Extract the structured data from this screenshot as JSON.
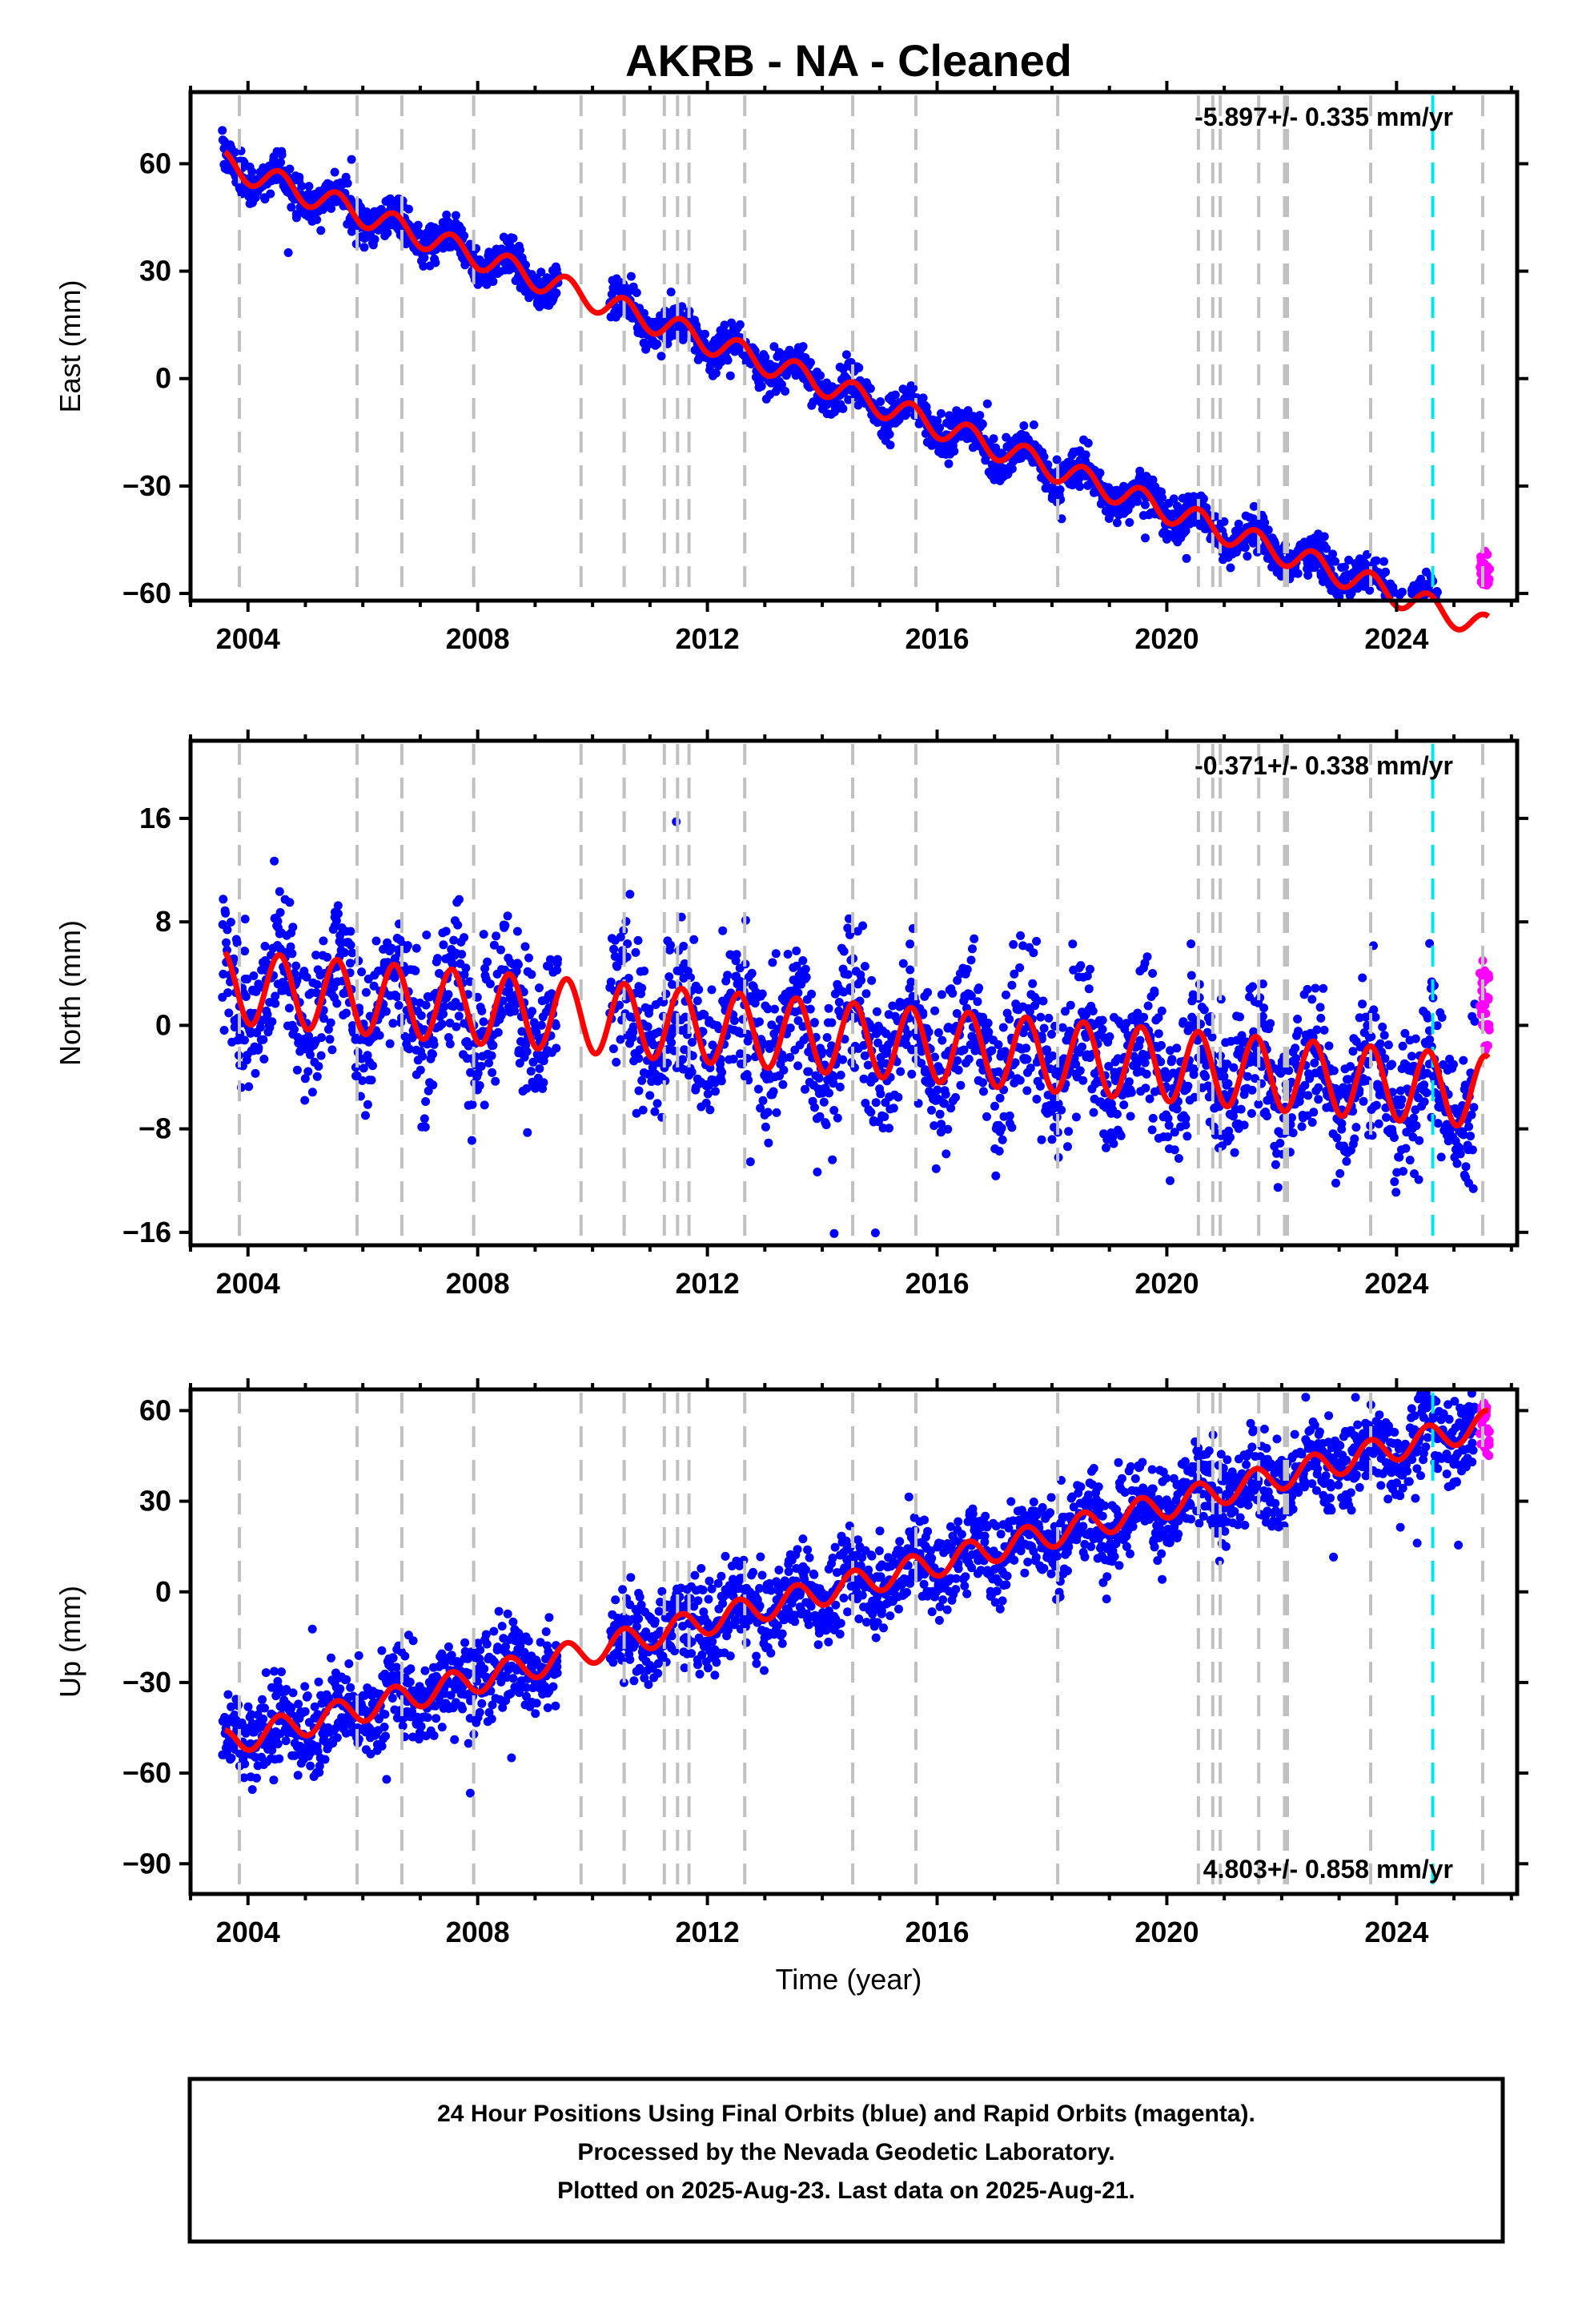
{
  "title": "AKRB  - NA - Cleaned",
  "x_axis_label": "Time (year)",
  "footer": {
    "line1": "24 Hour Positions Using Final Orbits (blue) and Rapid Orbits (magenta).",
    "line2": "Processed by the Nevada Geodetic Laboratory.",
    "line3": "Plotted on 2025-Aug-23. Last data on 2025-Aug-21."
  },
  "colors": {
    "final_orbits": "#0000ff",
    "rapid_orbits": "#ff00ff",
    "model": "#ff0000",
    "equipment_events": "#c0c0c0",
    "event_highlight": "#00e5ee"
  },
  "chart_data": [
    {
      "type": "scatter",
      "panel": "east",
      "ylabel": "East (mm)",
      "rate_label": "-5.897+/- 0.335 mm/yr",
      "xlim": [
        2003.0,
        2026.1
      ],
      "ylim": [
        -62,
        80
      ],
      "x_ticks": [
        2004,
        2008,
        2012,
        2016,
        2020,
        2024
      ],
      "y_ticks": [
        60,
        30,
        0,
        -30,
        -60
      ],
      "rate": -5.897,
      "ref_year": 2003.6,
      "offset": 60,
      "amplitude": 3.5,
      "scatter": 2.8,
      "rapid_range": [
        -59,
        -48
      ],
      "grid": false,
      "legend": "none"
    },
    {
      "type": "scatter",
      "panel": "north",
      "ylabel": "North (mm)",
      "rate_label": "-0.371+/- 0.338 mm/yr",
      "xlim": [
        2003.0,
        2026.1
      ],
      "ylim": [
        -17,
        22
      ],
      "x_ticks": [
        2004,
        2008,
        2012,
        2016,
        2020,
        2024
      ],
      "y_ticks": [
        16,
        8,
        0,
        -8,
        -16
      ],
      "rate": -0.371,
      "ref_year": 2003.6,
      "offset": 3,
      "amplitude": 2.8,
      "scatter": 2.9,
      "rapid_range": [
        -2,
        5
      ],
      "grid": false,
      "legend": "none"
    },
    {
      "type": "scatter",
      "panel": "up",
      "ylabel": "Up (mm)",
      "rate_label": "4.803+/- 0.858 mm/yr",
      "xlim": [
        2003.0,
        2026.1
      ],
      "ylim": [
        -100,
        67
      ],
      "x_ticks": [
        2004,
        2008,
        2012,
        2016,
        2020,
        2024
      ],
      "y_ticks": [
        60,
        30,
        0,
        -30,
        -60,
        -90
      ],
      "rate": 4.803,
      "ref_year": 2003.6,
      "offset": -50,
      "amplitude": 4.5,
      "scatter": 7.5,
      "rapid_range": [
        45,
        63
      ],
      "grid": false,
      "legend": "none"
    }
  ],
  "events": [
    2003.85,
    2005.9,
    2006.68,
    2007.93,
    2009.8,
    2010.55,
    2011.25,
    2011.48,
    2011.68,
    2012.65,
    2014.53,
    2015.63,
    2018.1,
    2020.55,
    2020.8,
    2020.93,
    2021.6,
    2022.05,
    2022.1,
    2023.55,
    2025.5
  ],
  "event_highlight": 2024.63,
  "data_gap": [
    2009.4,
    2010.3
  ]
}
